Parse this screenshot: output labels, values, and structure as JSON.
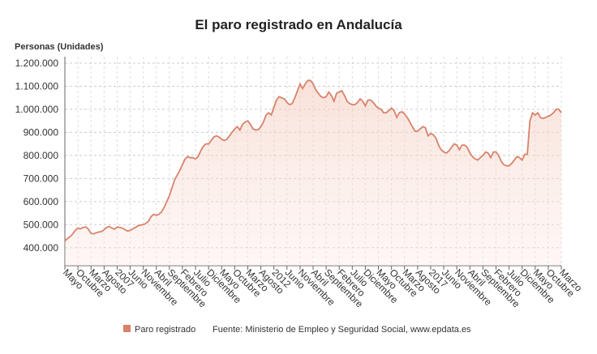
{
  "chart_data": {
    "type": "line",
    "title": "El paro registrado en Andalucía",
    "y_label": "Personas (Unidades)",
    "source": "Fuente: Ministerio de Empleo y Seguridad Social, www.epdata.es",
    "categories": [
      "Mayo",
      null,
      null,
      null,
      null,
      "Octubre",
      null,
      null,
      null,
      null,
      "Marzo",
      null,
      null,
      null,
      null,
      "Agosto",
      null,
      null,
      null,
      null,
      "2007",
      null,
      null,
      null,
      null,
      "Junio",
      null,
      null,
      null,
      null,
      "Noviembre",
      null,
      null,
      null,
      null,
      "Abril",
      null,
      null,
      null,
      null,
      "Septiembre",
      null,
      null,
      null,
      null,
      "Febrero",
      null,
      null,
      null,
      null,
      "Julio",
      null,
      null,
      null,
      null,
      "Diciembre",
      null,
      null,
      null,
      null,
      "Mayo",
      null,
      null,
      null,
      null,
      "Octubre",
      null,
      null,
      null,
      null,
      "Marzo",
      null,
      null,
      null,
      null,
      "Agosto",
      null,
      null,
      null,
      null,
      "2012",
      null,
      null,
      null,
      null,
      "Junio",
      null,
      null,
      null,
      null,
      "Noviembre",
      null,
      null,
      null,
      null,
      "Abril",
      null,
      null,
      null,
      null,
      "Septiembre",
      null,
      null,
      null,
      null,
      "Febrero",
      null,
      null,
      null,
      null,
      "Julio",
      null,
      null,
      null,
      null,
      "Diciembre",
      null,
      null,
      null,
      null,
      "Mayo",
      null,
      null,
      null,
      null,
      "Octubre",
      null,
      null,
      null,
      null,
      "Marzo",
      null,
      null,
      null,
      null,
      "Agosto",
      null,
      null,
      null,
      null,
      "2017",
      null,
      null,
      null,
      null,
      "Junio",
      null,
      null,
      null,
      null,
      "Noviembre",
      null,
      null,
      null,
      null,
      "Abril",
      null,
      null,
      null,
      null,
      "Septiembre",
      null,
      null,
      null,
      null,
      "Febrero",
      null,
      null,
      null,
      null,
      "Julio",
      null,
      null,
      null,
      null,
      "Diciembre",
      null,
      null,
      null,
      null,
      "Mayo",
      null,
      null,
      null,
      null,
      "Octubre",
      null,
      null,
      null,
      null,
      "Marzo"
    ],
    "series": [
      {
        "name": "Paro registrado",
        "color": "#d9826a",
        "values": [
          428000,
          440000,
          448000,
          460000,
          475000,
          485000,
          482000,
          488000,
          490000,
          480000,
          462000,
          460000,
          465000,
          468000,
          470000,
          478000,
          488000,
          492000,
          485000,
          480000,
          490000,
          488000,
          485000,
          478000,
          472000,
          475000,
          482000,
          488000,
          495000,
          498000,
          500000,
          505000,
          515000,
          535000,
          545000,
          540000,
          545000,
          555000,
          575000,
          600000,
          625000,
          660000,
          695000,
          715000,
          735000,
          760000,
          785000,
          795000,
          790000,
          790000,
          785000,
          795000,
          820000,
          840000,
          850000,
          850000,
          865000,
          880000,
          885000,
          880000,
          870000,
          865000,
          870000,
          885000,
          900000,
          915000,
          925000,
          910000,
          935000,
          945000,
          950000,
          935000,
          915000,
          910000,
          912000,
          925000,
          945000,
          975000,
          985000,
          975000,
          1010000,
          1040000,
          1055000,
          1050000,
          1045000,
          1030000,
          1020000,
          1025000,
          1050000,
          1080000,
          1110000,
          1090000,
          1110000,
          1125000,
          1125000,
          1110000,
          1085000,
          1070000,
          1055000,
          1050000,
          1055000,
          1075000,
          1060000,
          1035000,
          1070000,
          1075000,
          1080000,
          1060000,
          1035000,
          1025000,
          1020000,
          1020000,
          1030000,
          1045000,
          1035000,
          1015000,
          1040000,
          1040000,
          1030000,
          1015000,
          1005000,
          1000000,
          985000,
          985000,
          995000,
          1005000,
          995000,
          965000,
          985000,
          990000,
          980000,
          965000,
          945000,
          925000,
          905000,
          905000,
          915000,
          925000,
          920000,
          885000,
          895000,
          890000,
          875000,
          845000,
          825000,
          815000,
          810000,
          820000,
          835000,
          850000,
          845000,
          825000,
          845000,
          845000,
          835000,
          810000,
          795000,
          785000,
          780000,
          790000,
          800000,
          815000,
          810000,
          790000,
          815000,
          815000,
          800000,
          775000,
          760000,
          755000,
          755000,
          765000,
          780000,
          795000,
          790000,
          780000,
          805000,
          805000,
          950000,
          985000,
          975000,
          985000,
          965000,
          960000,
          965000,
          970000,
          975000,
          985000,
          1000000,
          1000000,
          985000
        ]
      }
    ],
    "ylim": [
      322000,
      1228000
    ],
    "yticks": [
      {
        "value": 400000,
        "label": "400.000"
      },
      {
        "value": 500000,
        "label": "500.000"
      },
      {
        "value": 600000,
        "label": "600.000"
      },
      {
        "value": 700000,
        "label": "700.000"
      },
      {
        "value": 800000,
        "label": "800.000"
      },
      {
        "value": 900000,
        "label": "900.000"
      },
      {
        "value": 1000000,
        "label": "1.000.000"
      },
      {
        "value": 1100000,
        "label": "1.100.000"
      },
      {
        "value": 1200000,
        "label": "1.200.000"
      }
    ],
    "grid": true
  }
}
